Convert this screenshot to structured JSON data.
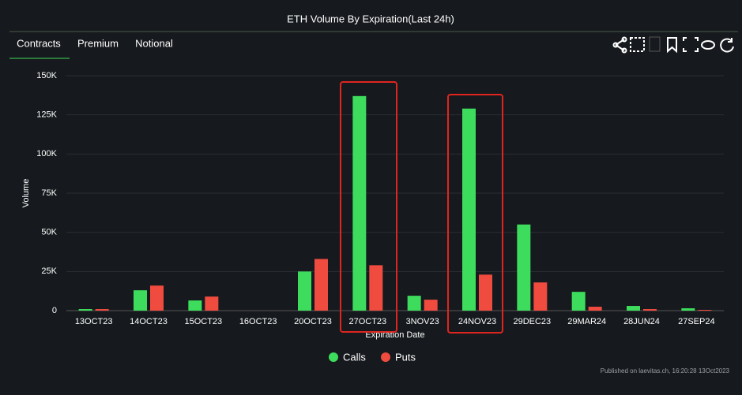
{
  "tabs": [
    "Contracts",
    "Premium",
    "Notional"
  ],
  "footer": "Published on laevitas.ch, 16:20:28 13Oct2023",
  "chart_data": {
    "type": "bar",
    "title": "ETH Volume By Expiration(Last 24h)",
    "x_label": "Expiration Date",
    "y_label": "Volume",
    "categories": [
      "13OCT23",
      "14OCT23",
      "15OCT23",
      "16OCT23",
      "20OCT23",
      "27OCT23",
      "3NOV23",
      "24NOV23",
      "29DEC23",
      "29MAR24",
      "28JUN24",
      "27SEP24"
    ],
    "series": [
      {
        "name": "Calls",
        "color": "#3ddc5c",
        "values": [
          1000,
          13000,
          6500,
          0,
          25000,
          137000,
          9500,
          129000,
          55000,
          12000,
          3000,
          1500
        ]
      },
      {
        "name": "Puts",
        "color": "#ef4b3f",
        "values": [
          1000,
          16000,
          9000,
          0,
          33000,
          29000,
          7000,
          23000,
          18000,
          2500,
          1000,
          500
        ]
      }
    ],
    "ylim": [
      0,
      150000
    ],
    "yticks": [
      0,
      {
        "value": 25000,
        "label": "25K"
      },
      {
        "value": 50000,
        "label": "50K"
      },
      {
        "value": 75000,
        "label": "75K"
      },
      {
        "value": 100000,
        "label": "100K"
      },
      {
        "value": 125000,
        "label": "125K"
      },
      {
        "value": 150000,
        "label": "150K"
      }
    ],
    "grid": true
  }
}
